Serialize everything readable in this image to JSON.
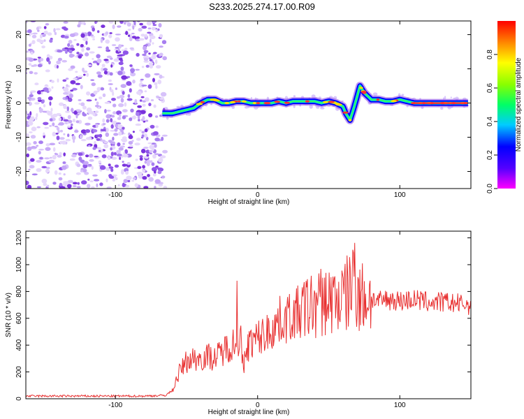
{
  "chart_data": [
    {
      "type": "heatmap",
      "title": "S233.2025.274.17.00.R09",
      "xlabel": "Height of straight line (km)",
      "ylabel": "Frequency (Hz)",
      "xlim": [
        -163,
        150
      ],
      "ylim": [
        -25,
        24
      ],
      "xticks": [
        "-100",
        "0",
        "100"
      ],
      "yticks": [
        "-20",
        "-10",
        "0",
        "10",
        "20"
      ],
      "noise_region_x": [
        -163,
        -65
      ],
      "ridge_x": [
        -67,
        -60,
        -55,
        -50,
        -45,
        -40,
        -35,
        -30,
        -25,
        -20,
        -15,
        -10,
        -5,
        0,
        5,
        10,
        15,
        20,
        25,
        30,
        35,
        40,
        45,
        50,
        55,
        60,
        62,
        65,
        68,
        70,
        72,
        75,
        80,
        85,
        90,
        95,
        100,
        105,
        110,
        120,
        130,
        140,
        148
      ],
      "ridge_freq": [
        -3,
        -3,
        -2.5,
        -2,
        -1.5,
        0,
        1,
        1,
        0,
        0,
        0.5,
        0.5,
        0,
        0,
        0,
        0,
        0.5,
        0,
        0.5,
        0.5,
        0.5,
        0.5,
        0,
        0.5,
        0,
        -1,
        -3,
        -5,
        -1,
        2,
        5,
        3,
        1,
        1,
        0.5,
        0.5,
        1,
        0.5,
        0,
        0,
        0,
        0,
        0
      ]
    },
    {
      "type": "colorbar",
      "label": "Normalized spectral amplitude",
      "range": [
        0,
        1
      ],
      "ticks": [
        "0.0",
        "0.2",
        "0.4",
        "0.6",
        "0.8"
      ],
      "colors": [
        "#ff00ff",
        "#5500ff",
        "#0000ff",
        "#00ccff",
        "#00ff66",
        "#88ff00",
        "#ffff00",
        "#ff8800",
        "#ff0000"
      ]
    },
    {
      "type": "line",
      "xlabel": "Height of straight line (km)",
      "ylabel": "SNR (10 * v/v)",
      "xlim": [
        -163,
        150
      ],
      "ylim": [
        0,
        1250
      ],
      "xticks": [
        "-100",
        "0",
        "100"
      ],
      "yticks": [
        "0",
        "200",
        "400",
        "600",
        "800",
        "1000",
        "1200"
      ],
      "color": "#e83030",
      "x": [
        -163,
        -140,
        -120,
        -100,
        -80,
        -65,
        -60,
        -55,
        -50,
        -45,
        -40,
        -35,
        -30,
        -25,
        -20,
        -15,
        -12,
        -10,
        -8,
        -5,
        0,
        5,
        10,
        15,
        20,
        25,
        30,
        35,
        40,
        45,
        50,
        55,
        60,
        65,
        67,
        70,
        75,
        80,
        85,
        90,
        95,
        100,
        110,
        120,
        130,
        140,
        150
      ],
      "snr": [
        20,
        20,
        20,
        20,
        20,
        25,
        60,
        200,
        280,
        300,
        300,
        320,
        300,
        350,
        400,
        420,
        450,
        200,
        380,
        420,
        450,
        480,
        520,
        580,
        600,
        620,
        650,
        680,
        700,
        720,
        740,
        740,
        750,
        800,
        900,
        750,
        760,
        750,
        720,
        740,
        740,
        730,
        740,
        720,
        720,
        710,
        700
      ]
    }
  ]
}
